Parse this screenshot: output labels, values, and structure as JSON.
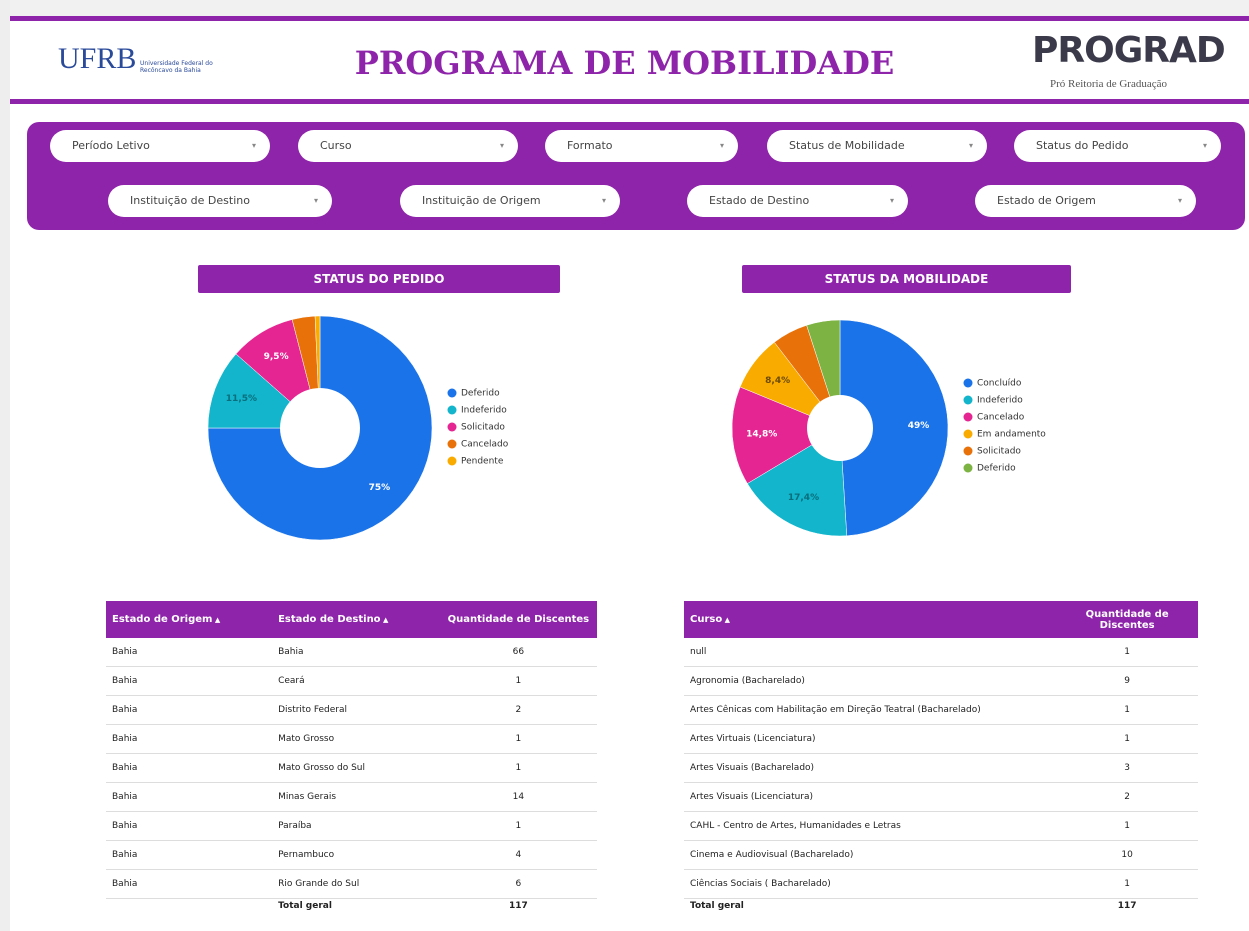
{
  "header": {
    "logo_text": "UFRB",
    "logo_subtitle": "Universidade Federal do Recôncavo da Bahia",
    "title": "PROGRAMA DE MOBILIDADE",
    "brand": "PROGRAD",
    "brand_subtitle": "Pró Reitoria de Graduação"
  },
  "filters": [
    "Período Letivo",
    "Curso",
    "Formato",
    "Status de Mobilidade",
    "Status do Pedido",
    "Instituição de Destino",
    "Instituição de Origem",
    "Estado de Destino",
    "Estado de Origem"
  ],
  "charts": [
    {
      "type": "pie",
      "title": "STATUS DO PEDIDO",
      "categories": [
        "Deferido",
        "Indeferido",
        "Solicitado",
        "Cancelado",
        "Pendente"
      ],
      "values": [
        75,
        11.5,
        9.5,
        3.3,
        0.7
      ],
      "value_labels": [
        "75%",
        "11,5%",
        "9,5%",
        null,
        null
      ],
      "colors": [
        "#1a73e8",
        "#12b5cb",
        "#e52592",
        "#e8710a",
        "#f9ab00"
      ]
    },
    {
      "type": "pie",
      "title": "STATUS DA MOBILIDADE",
      "categories": [
        "Concluído",
        "Indeferido",
        "Cancelado",
        "Em andamento",
        "Solicitado",
        "Deferido"
      ],
      "values": [
        49,
        17.4,
        14.8,
        8.4,
        5.4,
        5
      ],
      "value_labels": [
        "49%",
        "17,4%",
        "14,8%",
        "8,4%",
        null,
        null
      ],
      "colors": [
        "#1a73e8",
        "#12b5cb",
        "#e52592",
        "#f9ab00",
        "#e8710a",
        "#7cb342"
      ]
    }
  ],
  "tables": [
    {
      "columns": [
        "Estado de Origem",
        "Estado de Destino",
        "Quantidade de Discentes"
      ],
      "rows": [
        [
          "Bahia",
          "Bahia",
          66
        ],
        [
          "Bahia",
          "Ceará",
          1
        ],
        [
          "Bahia",
          "Distrito Federal",
          2
        ],
        [
          "Bahia",
          "Mato Grosso",
          1
        ],
        [
          "Bahia",
          "Mato Grosso do Sul",
          1
        ],
        [
          "Bahia",
          "Minas Gerais",
          14
        ],
        [
          "Bahia",
          "Paraíba",
          1
        ],
        [
          "Bahia",
          "Pernambuco",
          4
        ],
        [
          "Bahia",
          "Rio Grande do Sul",
          6
        ]
      ],
      "total": {
        "label": "Total geral",
        "value": 117
      }
    },
    {
      "columns": [
        "Curso",
        "Quantidade de Discentes"
      ],
      "rows": [
        [
          "null",
          1
        ],
        [
          "Agronomia (Bacharelado)",
          9
        ],
        [
          "Artes Cênicas com Habilitação em Direção Teatral (Bacharelado)",
          1
        ],
        [
          "Artes Virtuais (Licenciatura)",
          1
        ],
        [
          "Artes Visuais (Bacharelado)",
          3
        ],
        [
          "Artes Visuais (Licenciatura)",
          2
        ],
        [
          "CAHL - Centro de Artes, Humanidades e Letras",
          1
        ],
        [
          "Cinema e Audiovisual (Bacharelado)",
          10
        ],
        [
          "Ciências Sociais ( Bacharelado)",
          1
        ]
      ],
      "total": {
        "label": "Total geral",
        "value": 117
      }
    }
  ]
}
